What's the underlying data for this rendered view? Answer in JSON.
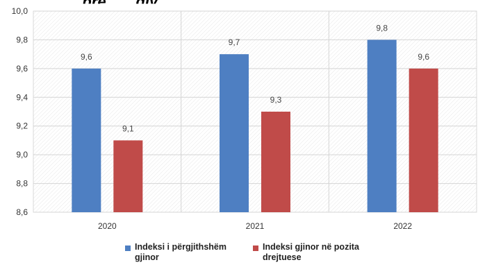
{
  "chart_data": {
    "type": "bar",
    "title": "",
    "categories": [
      "2020",
      "2021",
      "2022"
    ],
    "series": [
      {
        "name": "Indeksi i përgjithshëm gjinor",
        "values": [
          9.6,
          9.7,
          9.8
        ],
        "color": "#4e7fc2"
      },
      {
        "name": "Indeksi gjinor në pozita drejtuese",
        "values": [
          9.1,
          9.3,
          9.6
        ],
        "color": "#c04b49"
      }
    ],
    "y_ticks": [
      "8,6",
      "8,8",
      "9,0",
      "9,2",
      "9,4",
      "9,6",
      "9,8",
      "10,0"
    ],
    "data_labels": [
      [
        "9,6",
        "9,7",
        "9,8"
      ],
      [
        "9,1",
        "9,3",
        "9,6"
      ]
    ],
    "ylim": [
      8.6,
      10.0
    ],
    "grid": true,
    "legend_position": "bottom"
  },
  "header": {
    "title_fragment": "...pre... ...gjy..."
  }
}
